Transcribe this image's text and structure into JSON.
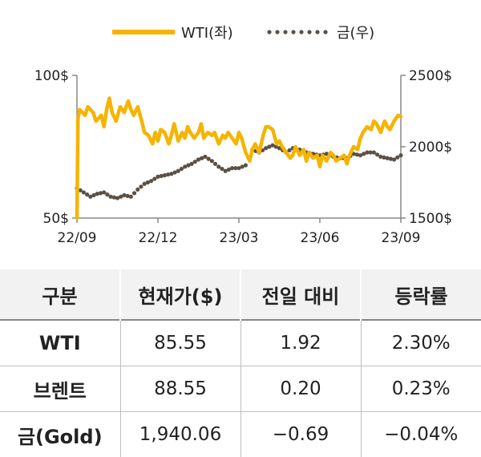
{
  "colors": {
    "wti": "#f5b400",
    "gold": "#5a5046",
    "axis": "#888888"
  },
  "chart_data": {
    "type": "line",
    "legend": {
      "placement": "top-center",
      "entries": [
        "WTI(좌)",
        "금(우)"
      ]
    },
    "x_ticks": [
      "22/09",
      "22/12",
      "23/03",
      "23/06",
      "23/09"
    ],
    "x_range": [
      "2022-09",
      "2023-09"
    ],
    "left_axis": {
      "ylim": [
        50,
        100
      ],
      "ticks": [
        "100$",
        "50$"
      ]
    },
    "right_axis": {
      "ylim": [
        1500,
        2500
      ],
      "ticks": [
        "2500$",
        "2000$",
        "1500$"
      ]
    },
    "series": [
      {
        "name": "WTI(좌)",
        "axis": "left",
        "style": "solid",
        "x": [
          0,
          0.04,
          0.1,
          0.3,
          0.4,
          0.6,
          0.7,
          0.9,
          1.0,
          1.1,
          1.2,
          1.3,
          1.45,
          1.6,
          1.75,
          1.9,
          2.0,
          2.1,
          2.25,
          2.4,
          2.5,
          2.65,
          2.8,
          2.9,
          3.0,
          3.1,
          3.25,
          3.4,
          3.5,
          3.6,
          3.75,
          3.9,
          4.0,
          4.1,
          4.2,
          4.35,
          4.5,
          4.6,
          4.7,
          4.85,
          5.0,
          5.1,
          5.25,
          5.4,
          5.5,
          5.6,
          5.75,
          5.9,
          6.0,
          6.1,
          6.25,
          6.4,
          6.5,
          6.6,
          6.75,
          6.9,
          7.0,
          7.1,
          7.25,
          7.4,
          7.5,
          7.6,
          7.75,
          7.9,
          8.0,
          8.1,
          8.25,
          8.4,
          8.5,
          8.6,
          8.75,
          8.9,
          9.0,
          9.1,
          9.25,
          9.4,
          9.5,
          9.6,
          9.75,
          9.9,
          10.0,
          10.1,
          10.25,
          10.4,
          10.5,
          10.6,
          10.75,
          10.9,
          11.0,
          11.1,
          11.25,
          11.4,
          11.5,
          11.6,
          11.75,
          11.9,
          12.0
        ],
        "values": [
          50,
          85,
          88,
          86,
          89,
          87,
          84,
          86,
          82,
          88,
          92,
          87,
          84,
          89,
          87,
          91,
          88,
          86,
          89,
          84,
          80,
          79,
          76,
          80,
          77,
          81,
          80,
          76,
          79,
          83,
          77,
          80,
          78,
          82,
          80,
          78,
          80,
          83,
          78,
          80,
          79,
          80,
          76,
          79,
          78,
          80,
          78,
          76,
          80,
          78,
          73,
          70,
          74,
          76,
          73,
          79,
          82,
          82,
          81,
          76,
          77,
          75,
          73,
          71,
          72,
          75,
          72,
          74,
          70,
          73,
          71,
          72,
          68,
          72,
          70,
          73,
          72,
          70,
          71,
          72,
          69,
          72,
          75,
          74,
          78,
          80,
          82,
          81,
          84,
          83,
          80,
          84,
          82,
          81,
          84,
          86,
          85.55
        ]
      },
      {
        "name": "금(우)",
        "axis": "right",
        "style": "dotted",
        "x": [
          0,
          0.25,
          0.5,
          0.75,
          1.0,
          1.25,
          1.5,
          1.75,
          2.0,
          2.25,
          2.5,
          2.75,
          3.0,
          3.25,
          3.5,
          3.75,
          4.0,
          4.25,
          4.5,
          4.75,
          5.0,
          5.25,
          5.5,
          5.75,
          6.0,
          6.25,
          6.5,
          6.75,
          7.0,
          7.25,
          7.5,
          7.75,
          8.0,
          8.25,
          8.5,
          8.75,
          9.0,
          9.25,
          9.5,
          9.75,
          10.0,
          10.25,
          10.5,
          10.75,
          11.0,
          11.25,
          11.5,
          11.75,
          12.0
        ],
        "values": [
          1710,
          1680,
          1650,
          1670,
          1680,
          1650,
          1640,
          1660,
          1650,
          1700,
          1740,
          1760,
          1790,
          1800,
          1810,
          1830,
          1860,
          1880,
          1910,
          1930,
          1900,
          1860,
          1830,
          1850,
          1850,
          1870,
          1980,
          1960,
          1990,
          2010,
          1990,
          1960,
          1990,
          1980,
          1960,
          1950,
          1940,
          1950,
          1930,
          1920,
          1920,
          1950,
          1940,
          1960,
          1960,
          1930,
          1920,
          1910,
          1940.06
        ]
      }
    ]
  },
  "table": {
    "headers": [
      "구분",
      "현재가($)",
      "전일 대비",
      "등락률"
    ],
    "rows": [
      [
        "WTI",
        "85.55",
        "1.92",
        "2.30%"
      ],
      [
        "브렌트",
        "88.55",
        "0.20",
        "0.23%"
      ],
      [
        "금(Gold)",
        "1,940.06",
        "−0.69",
        "−0.04%"
      ]
    ]
  }
}
